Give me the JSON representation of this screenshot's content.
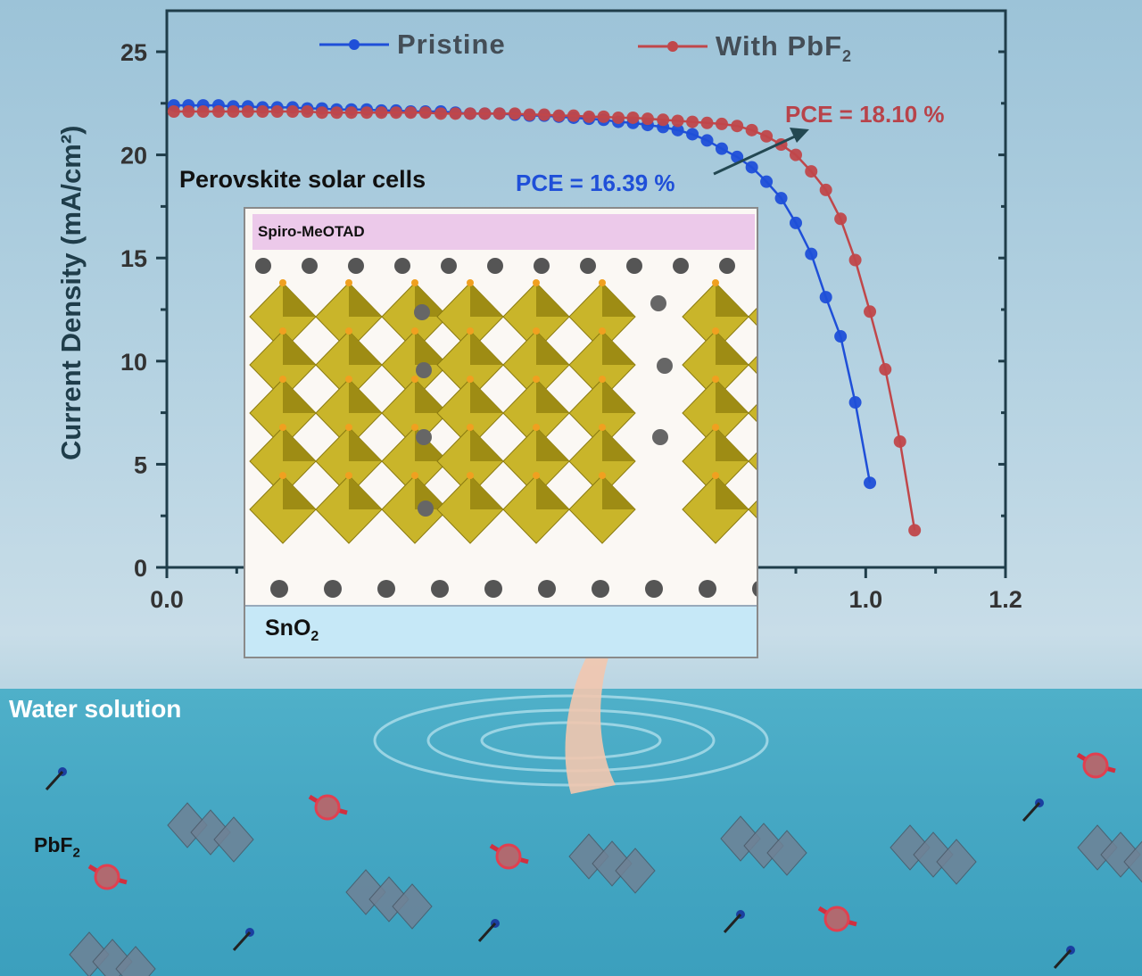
{
  "chart_data": {
    "type": "scatter-line",
    "xlabel": "",
    "ylabel": "Current Density (mA/cm²)",
    "xlim": [
      0,
      1.2
    ],
    "ylim": [
      0,
      25
    ],
    "xticks": [
      "0.0",
      "1.0",
      "1.2"
    ],
    "yticks": [
      "0",
      "5",
      "10",
      "15",
      "20",
      "25"
    ],
    "grid": false,
    "legend_placement": "top",
    "x": [
      0.01,
      0.031,
      0.052,
      0.074,
      0.095,
      0.116,
      0.137,
      0.158,
      0.18,
      0.201,
      0.222,
      0.243,
      0.264,
      0.286,
      0.307,
      0.328,
      0.349,
      0.37,
      0.392,
      0.413,
      0.434,
      0.455,
      0.476,
      0.498,
      0.519,
      0.54,
      0.561,
      0.582,
      0.604,
      0.625,
      0.646,
      0.667,
      0.688,
      0.71,
      0.731,
      0.752,
      0.773,
      0.794,
      0.816,
      0.837,
      0.858,
      0.879,
      0.9,
      0.922,
      0.943,
      0.964,
      0.985,
      1.006,
      1.028,
      1.049,
      1.07
    ],
    "series": [
      {
        "name": "Pristine",
        "color": "#1f4fd8",
        "values": [
          22.4,
          22.4,
          22.4,
          22.4,
          22.35,
          22.35,
          22.3,
          22.3,
          22.3,
          22.25,
          22.25,
          22.2,
          22.2,
          22.2,
          22.15,
          22.15,
          22.1,
          22.1,
          22.1,
          22.05,
          22.0,
          22.0,
          22.0,
          21.95,
          21.9,
          21.9,
          21.85,
          21.8,
          21.75,
          21.7,
          21.6,
          21.55,
          21.45,
          21.35,
          21.2,
          21.0,
          20.7,
          20.3,
          19.9,
          19.4,
          18.7,
          17.9,
          16.7,
          15.2,
          13.1,
          11.2,
          8.0,
          4.1
        ]
      },
      {
        "name": "With PbF2",
        "color": "#c0474a",
        "values": [
          22.1,
          22.1,
          22.1,
          22.1,
          22.1,
          22.1,
          22.1,
          22.1,
          22.1,
          22.1,
          22.05,
          22.05,
          22.05,
          22.05,
          22.05,
          22.05,
          22.05,
          22.05,
          22.0,
          22.0,
          22.0,
          22.0,
          22.0,
          22.0,
          21.95,
          21.95,
          21.9,
          21.9,
          21.85,
          21.85,
          21.8,
          21.8,
          21.75,
          21.7,
          21.65,
          21.6,
          21.55,
          21.5,
          21.4,
          21.2,
          20.9,
          20.5,
          20.0,
          19.2,
          18.3,
          16.9,
          14.9,
          12.4,
          9.6,
          6.1,
          1.8
        ]
      }
    ],
    "annotations": {
      "title": "Perovskite solar cells",
      "pce_pristine": "PCE = 16.39 %",
      "pce_pbf2": "PCE = 18.10 %"
    }
  },
  "legend": {
    "pristine": "Pristine",
    "pbf2_main": "With PbF",
    "pbf2_sub": "2"
  },
  "inset": {
    "top_layer": "Spiro-MeOTAD",
    "bottom_layer_main": "SnO",
    "bottom_layer_sub": "2"
  },
  "water": {
    "label": "Water solution",
    "pbf2_main": "PbF",
    "pbf2_sub": "2"
  },
  "colors": {
    "pristine": "#1f4fd8",
    "pbf2": "#c0474a",
    "axis": "#1f3d4a"
  }
}
